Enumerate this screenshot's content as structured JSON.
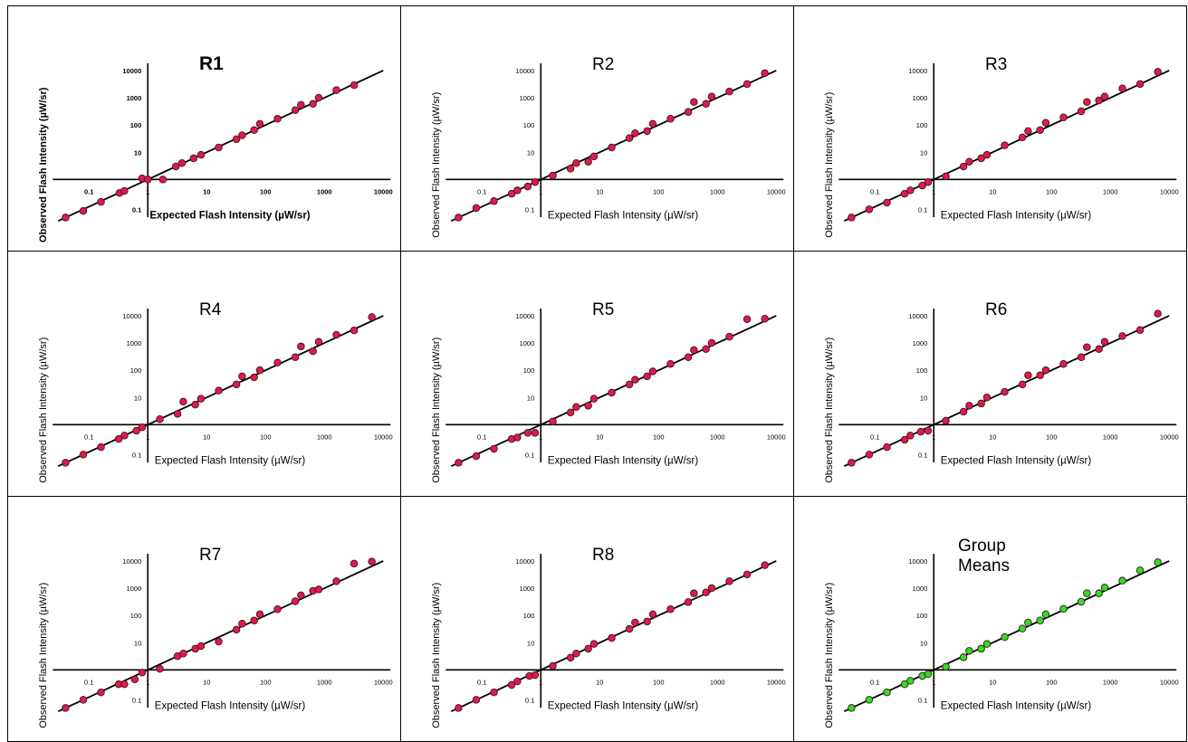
{
  "chart_data": [
    {
      "type": "scatter",
      "title": "R1",
      "xlabel": "Expected Flash Intensity (µW/sr)",
      "ylabel": "Observed Flash Intensity (µW/sr)",
      "xscale": "log",
      "yscale": "log",
      "xlim": [
        0.03,
        10000
      ],
      "ylim": [
        0.03,
        10000
      ],
      "xticks": [
        "0.1",
        "1",
        "10",
        "100",
        "1000",
        "10000"
      ],
      "yticks": [
        "0.1",
        "10",
        "100",
        "1000",
        "10000"
      ],
      "fit_line": "y = x",
      "marker_color": "#e0194f",
      "grid": false,
      "x": [
        0.04,
        0.08,
        0.16,
        0.33,
        0.4,
        0.8,
        1,
        1.8,
        3,
        3.8,
        6,
        8,
        16,
        32,
        40,
        64,
        80,
        160,
        320,
        400,
        640,
        800,
        1600,
        3200
      ],
      "y": [
        0.04,
        0.07,
        0.15,
        0.32,
        0.38,
        1.1,
        1,
        1,
        3,
        4,
        6,
        8,
        15,
        30,
        42,
        65,
        110,
        170,
        350,
        550,
        600,
        1000,
        1900,
        2900
      ]
    },
    {
      "type": "scatter",
      "title": "R2",
      "xlabel": "Expected Flash Intensity (µW/sr)",
      "ylabel": "Observed Flash Intensity (µW/sr)",
      "xscale": "log",
      "yscale": "log",
      "xlim": [
        0.03,
        10000
      ],
      "ylim": [
        0.03,
        10000
      ],
      "xticks": [
        "0.1",
        "1",
        "10",
        "100",
        "1000",
        "10000"
      ],
      "yticks": [
        "0.1",
        "10",
        "100",
        "1000",
        "10000"
      ],
      "fit_line": "y = x",
      "marker_color": "#e0194f",
      "grid": false,
      "x": [
        0.04,
        0.08,
        0.16,
        0.32,
        0.4,
        0.6,
        0.8,
        1.6,
        3.2,
        4,
        6.4,
        8,
        16,
        32,
        40,
        64,
        80,
        160,
        320,
        400,
        640,
        800,
        1600,
        3200,
        6400
      ],
      "y": [
        0.04,
        0.09,
        0.16,
        0.3,
        0.4,
        0.55,
        0.8,
        1.4,
        2.5,
        4,
        4.5,
        7,
        15,
        33,
        50,
        60,
        110,
        170,
        300,
        700,
        600,
        1100,
        1700,
        3200,
        8000
      ]
    },
    {
      "type": "scatter",
      "title": "R3",
      "xlabel": "Expected Flash Intensity (µW/sr)",
      "ylabel": "Observed Flash Intensity (µW/sr)",
      "xscale": "log",
      "yscale": "log",
      "xlim": [
        0.03,
        10000
      ],
      "ylim": [
        0.03,
        10000
      ],
      "xticks": [
        "0.1",
        "1",
        "10",
        "100",
        "1000",
        "10000"
      ],
      "yticks": [
        "0.1",
        "10",
        "100",
        "1000",
        "10000"
      ],
      "fit_line": "y = x",
      "marker_color": "#e0194f",
      "grid": false,
      "x": [
        0.04,
        0.08,
        0.16,
        0.32,
        0.4,
        0.64,
        0.8,
        1.6,
        3.2,
        4,
        6.4,
        8,
        16,
        32,
        40,
        64,
        80,
        160,
        320,
        400,
        640,
        800,
        1600,
        3200,
        6400
      ],
      "y": [
        0.04,
        0.08,
        0.14,
        0.3,
        0.4,
        0.6,
        0.8,
        1.3,
        3,
        4.5,
        6,
        8,
        18,
        35,
        60,
        65,
        120,
        190,
        320,
        700,
        800,
        1100,
        2200,
        3200,
        9000
      ]
    },
    {
      "type": "scatter",
      "title": "R4",
      "xlabel": "Expected Flash Intensity (µW/sr)",
      "ylabel": "Observed Flash Intensity (µW/sr)",
      "xscale": "log",
      "yscale": "log",
      "xlim": [
        0.03,
        10000
      ],
      "ylim": [
        0.03,
        10000
      ],
      "xticks": [
        "0.1",
        "1",
        "10",
        "100",
        "1000",
        "10000"
      ],
      "yticks": [
        "0.1",
        "10",
        "100",
        "1000",
        "10000"
      ],
      "fit_line": "y = x",
      "marker_color": "#e0194f",
      "grid": false,
      "x": [
        0.04,
        0.08,
        0.16,
        0.32,
        0.4,
        0.64,
        0.8,
        1.6,
        3.2,
        4,
        6.4,
        8,
        16,
        32,
        40,
        64,
        80,
        160,
        320,
        400,
        640,
        800,
        1600,
        3200,
        6400
      ],
      "y": [
        0.04,
        0.08,
        0.15,
        0.3,
        0.4,
        0.6,
        0.8,
        1.6,
        2.5,
        7,
        5.5,
        9,
        18,
        30,
        60,
        55,
        100,
        190,
        300,
        750,
        500,
        1100,
        2000,
        2900,
        9000
      ]
    },
    {
      "type": "scatter",
      "title": "R5",
      "xlabel": "Expected Flash Intensity (µW/sr)",
      "ylabel": "Observed Flash Intensity (µW/sr)",
      "xscale": "log",
      "yscale": "log",
      "xlim": [
        0.03,
        10000
      ],
      "ylim": [
        0.03,
        10000
      ],
      "xticks": [
        "0.1",
        "1",
        "10",
        "100",
        "1000",
        "10000"
      ],
      "yticks": [
        "0.1",
        "10",
        "100",
        "1000",
        "10000"
      ],
      "fit_line": "y = x",
      "marker_color": "#e0194f",
      "grid": false,
      "x": [
        0.04,
        0.08,
        0.16,
        0.32,
        0.4,
        0.6,
        0.8,
        1.6,
        3.2,
        4,
        6.4,
        8,
        16,
        32,
        40,
        64,
        80,
        160,
        320,
        400,
        640,
        800,
        1600,
        3200,
        6400
      ],
      "y": [
        0.04,
        0.07,
        0.13,
        0.3,
        0.34,
        0.5,
        0.5,
        1.3,
        2.8,
        4.5,
        5,
        9,
        15,
        30,
        45,
        60,
        90,
        170,
        300,
        550,
        600,
        1000,
        1700,
        7500,
        7800
      ]
    },
    {
      "type": "scatter",
      "title": "R6",
      "xlabel": "Expected Flash Intensity (µW/sr)",
      "ylabel": "Observed Flash Intensity (µW/sr)",
      "xscale": "log",
      "yscale": "log",
      "xlim": [
        0.03,
        10000
      ],
      "ylim": [
        0.03,
        10000
      ],
      "xticks": [
        "0.1",
        "1",
        "10",
        "100",
        "1000",
        "10000"
      ],
      "yticks": [
        "0.1",
        "10",
        "100",
        "1000",
        "10000"
      ],
      "fit_line": "y = x",
      "marker_color": "#e0194f",
      "grid": false,
      "x": [
        0.04,
        0.08,
        0.16,
        0.32,
        0.4,
        0.6,
        0.8,
        1.6,
        3.2,
        4,
        6.4,
        8,
        16,
        32,
        40,
        64,
        80,
        160,
        320,
        400,
        640,
        800,
        1600,
        3200,
        6400
      ],
      "y": [
        0.04,
        0.08,
        0.15,
        0.28,
        0.4,
        0.55,
        0.6,
        1.4,
        3,
        5,
        6,
        10,
        16,
        30,
        65,
        65,
        100,
        170,
        300,
        700,
        600,
        1100,
        1800,
        3000,
        12000
      ]
    },
    {
      "type": "scatter",
      "title": "R7",
      "xlabel": "Expected Flash Intensity (µW/sr)",
      "ylabel": "Observed Flash Intensity (µW/sr)",
      "xscale": "log",
      "yscale": "log",
      "xlim": [
        0.03,
        10000
      ],
      "ylim": [
        0.03,
        10000
      ],
      "xticks": [
        "0.1",
        "1",
        "10",
        "100",
        "1000",
        "10000"
      ],
      "yticks": [
        "0.1",
        "10",
        "100",
        "1000",
        "10000"
      ],
      "fit_line": "y = x",
      "marker_color": "#e0194f",
      "grid": false,
      "x": [
        0.04,
        0.08,
        0.16,
        0.32,
        0.4,
        0.6,
        0.8,
        1.6,
        3.2,
        4,
        6.4,
        8,
        16,
        32,
        40,
        64,
        80,
        160,
        320,
        400,
        640,
        800,
        1600,
        3200,
        6400
      ],
      "y": [
        0.04,
        0.08,
        0.15,
        0.3,
        0.3,
        0.45,
        0.8,
        1.1,
        3.2,
        4,
        6,
        7.5,
        11,
        30,
        50,
        65,
        110,
        170,
        330,
        550,
        800,
        900,
        1800,
        8000,
        9500
      ]
    },
    {
      "type": "scatter",
      "title": "R8",
      "xlabel": "Expected Flash Intensity (µW/sr)",
      "ylabel": "Observed Flash Intensity (µW/sr)",
      "xscale": "log",
      "yscale": "log",
      "xlim": [
        0.03,
        10000
      ],
      "ylim": [
        0.03,
        10000
      ],
      "xticks": [
        "0.1",
        "1",
        "10",
        "100",
        "1000",
        "10000"
      ],
      "yticks": [
        "0.1",
        "10",
        "100",
        "1000",
        "10000"
      ],
      "fit_line": "y = x",
      "marker_color": "#e0194f",
      "grid": false,
      "x": [
        0.04,
        0.08,
        0.16,
        0.32,
        0.4,
        0.64,
        0.8,
        1.6,
        3.2,
        4,
        6.4,
        8,
        16,
        32,
        40,
        64,
        80,
        160,
        320,
        400,
        640,
        800,
        1600,
        3200,
        6400
      ],
      "y": [
        0.04,
        0.08,
        0.15,
        0.28,
        0.38,
        0.6,
        0.65,
        1.4,
        2.8,
        4,
        6,
        9,
        15,
        32,
        55,
        60,
        110,
        170,
        310,
        650,
        700,
        1000,
        1800,
        3200,
        7000
      ]
    },
    {
      "type": "scatter",
      "title": "Group\nMeans",
      "xlabel": "Expected Flash Intensity (µW/sr)",
      "ylabel": "Observed Flash Intensity (µW/sr)",
      "xscale": "log",
      "yscale": "log",
      "xlim": [
        0.03,
        10000
      ],
      "ylim": [
        0.03,
        10000
      ],
      "xticks": [
        "0.1",
        "1",
        "10",
        "100",
        "1000",
        "10000"
      ],
      "yticks": [
        "0.1",
        "10",
        "100",
        "1000",
        "10000"
      ],
      "fit_line": "y = x",
      "marker_color": "#33dd22",
      "grid": false,
      "x": [
        0.04,
        0.08,
        0.16,
        0.32,
        0.4,
        0.64,
        0.8,
        1.6,
        3.2,
        4,
        6.4,
        8,
        16,
        32,
        40,
        64,
        80,
        160,
        320,
        400,
        640,
        800,
        1600,
        3200,
        6400
      ],
      "y": [
        0.04,
        0.08,
        0.15,
        0.3,
        0.4,
        0.6,
        0.7,
        1.3,
        2.9,
        5,
        6,
        9,
        16,
        33,
        55,
        65,
        110,
        175,
        320,
        650,
        650,
        1050,
        1900,
        4500,
        9000
      ]
    }
  ]
}
